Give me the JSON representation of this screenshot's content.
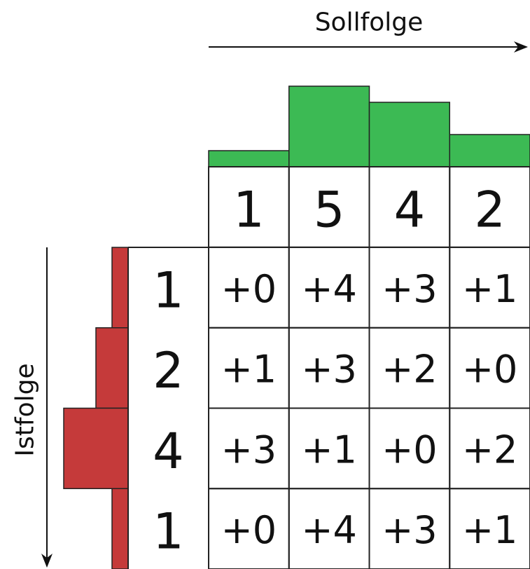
{
  "col_axis": "Sollfolge",
  "row_axis": "Istfolge",
  "columns": [
    1,
    5,
    4,
    2
  ],
  "rows": [
    {
      "label": 1,
      "cells": [
        "+0",
        "+4",
        "+3",
        "+1"
      ]
    },
    {
      "label": 2,
      "cells": [
        "+1",
        "+3",
        "+2",
        "+0"
      ]
    },
    {
      "label": 4,
      "cells": [
        "+3",
        "+1",
        "+0",
        "+2"
      ]
    },
    {
      "label": 1,
      "cells": [
        "+0",
        "+4",
        "+3",
        "+1"
      ]
    }
  ]
}
